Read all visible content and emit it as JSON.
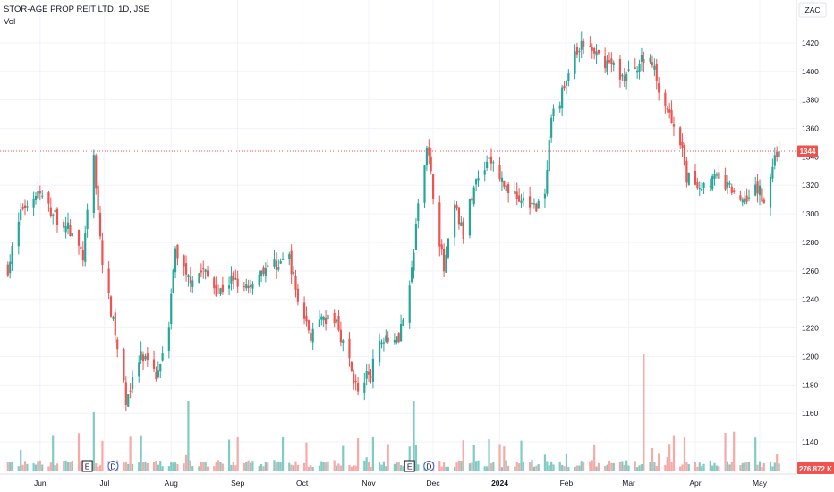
{
  "header": {
    "symbol_title": "STOR-AGE PROP REIT LTD, 1D, JSE",
    "volume_label": "Vol"
  },
  "price_axis": {
    "currency_button": "ZAC",
    "last_price_tag": "1344",
    "volume_tag": "276.872 K"
  },
  "event_markers": [
    {
      "label": "E",
      "date": "Jun 23"
    },
    {
      "label": "D",
      "date": "Jul 5"
    },
    {
      "label": "E",
      "date": "Nov 20"
    },
    {
      "label": "D",
      "date": "Nov 29"
    }
  ],
  "colors": {
    "up": "#26a69a",
    "down": "#ef5350",
    "up_volume": "#80cbc4",
    "down_volume": "#f7a9a7",
    "last_price_line": "#ef5350",
    "grid": "#f0f3fa"
  },
  "chart_data": {
    "type": "candlestick",
    "title": "STOR-AGE PROP REIT LTD, 1D, JSE",
    "currency": "ZAC",
    "ylim": [
      1130,
      1435
    ],
    "y_ticks": [
      1140,
      1160,
      1180,
      1200,
      1220,
      1240,
      1260,
      1280,
      1300,
      1320,
      1340,
      1360,
      1380,
      1400,
      1420
    ],
    "x_tick_labels": [
      "Jun",
      "Jul",
      "Aug",
      "Sep",
      "Oct",
      "Nov",
      "Dec",
      "2024",
      "Feb",
      "Mar",
      "Apr",
      "May"
    ],
    "last_price": 1344,
    "last_volume_label": "276.872 K",
    "grid": true,
    "series": [
      {
        "name": "Price",
        "close_path": [
          {
            "date": "2023-05-17",
            "close": 1262
          },
          {
            "date": "2023-05-24",
            "close": 1305
          },
          {
            "date": "2023-05-31",
            "close": 1315
          },
          {
            "date": "2023-06-07",
            "close": 1300
          },
          {
            "date": "2023-06-14",
            "close": 1290
          },
          {
            "date": "2023-06-21",
            "close": 1270
          },
          {
            "date": "2023-06-26",
            "close": 1340
          },
          {
            "date": "2023-06-30",
            "close": 1265
          },
          {
            "date": "2023-07-06",
            "close": 1215
          },
          {
            "date": "2023-07-11",
            "close": 1170
          },
          {
            "date": "2023-07-18",
            "close": 1200
          },
          {
            "date": "2023-07-25",
            "close": 1185
          },
          {
            "date": "2023-07-31",
            "close": 1225
          },
          {
            "date": "2023-08-03",
            "close": 1275
          },
          {
            "date": "2023-08-09",
            "close": 1255
          },
          {
            "date": "2023-08-16",
            "close": 1260
          },
          {
            "date": "2023-08-23",
            "close": 1245
          },
          {
            "date": "2023-08-30",
            "close": 1255
          },
          {
            "date": "2023-09-06",
            "close": 1250
          },
          {
            "date": "2023-09-13",
            "close": 1262
          },
          {
            "date": "2023-09-20",
            "close": 1265
          },
          {
            "date": "2023-09-25",
            "close": 1270
          },
          {
            "date": "2023-09-29",
            "close": 1240
          },
          {
            "date": "2023-10-05",
            "close": 1215
          },
          {
            "date": "2023-10-11",
            "close": 1225
          },
          {
            "date": "2023-10-17",
            "close": 1225
          },
          {
            "date": "2023-10-23",
            "close": 1195
          },
          {
            "date": "2023-10-27",
            "close": 1175
          },
          {
            "date": "2023-11-02",
            "close": 1190
          },
          {
            "date": "2023-11-08",
            "close": 1215
          },
          {
            "date": "2023-11-15",
            "close": 1215
          },
          {
            "date": "2023-11-20",
            "close": 1245
          },
          {
            "date": "2023-11-24",
            "close": 1305
          },
          {
            "date": "2023-11-28",
            "close": 1350
          },
          {
            "date": "2023-12-01",
            "close": 1315
          },
          {
            "date": "2023-12-06",
            "close": 1260
          },
          {
            "date": "2023-12-11",
            "close": 1305
          },
          {
            "date": "2023-12-15",
            "close": 1285
          },
          {
            "date": "2023-12-20",
            "close": 1320
          },
          {
            "date": "2023-12-27",
            "close": 1340
          },
          {
            "date": "2024-01-03",
            "close": 1320
          },
          {
            "date": "2024-01-10",
            "close": 1310
          },
          {
            "date": "2024-01-17",
            "close": 1305
          },
          {
            "date": "2024-01-22",
            "close": 1310
          },
          {
            "date": "2024-01-25",
            "close": 1365
          },
          {
            "date": "2024-01-30",
            "close": 1385
          },
          {
            "date": "2024-02-05",
            "close": 1410
          },
          {
            "date": "2024-02-09",
            "close": 1420
          },
          {
            "date": "2024-02-15",
            "close": 1410
          },
          {
            "date": "2024-02-22",
            "close": 1405
          },
          {
            "date": "2024-02-28",
            "close": 1395
          },
          {
            "date": "2024-03-05",
            "close": 1405
          },
          {
            "date": "2024-03-11",
            "close": 1410
          },
          {
            "date": "2024-03-15",
            "close": 1390
          },
          {
            "date": "2024-03-20",
            "close": 1370
          },
          {
            "date": "2024-03-25",
            "close": 1350
          },
          {
            "date": "2024-03-28",
            "close": 1325
          },
          {
            "date": "2024-04-04",
            "close": 1320
          },
          {
            "date": "2024-04-10",
            "close": 1325
          },
          {
            "date": "2024-04-17",
            "close": 1318
          },
          {
            "date": "2024-04-23",
            "close": 1310
          },
          {
            "date": "2024-04-29",
            "close": 1320
          },
          {
            "date": "2024-05-03",
            "close": 1310
          },
          {
            "date": "2024-05-08",
            "close": 1340
          },
          {
            "date": "2024-05-10",
            "close": 1344
          }
        ]
      },
      {
        "name": "Vol",
        "notable": [
          {
            "date": "2023-06-26",
            "volume_relative": 0.5
          },
          {
            "date": "2023-08-09",
            "volume_relative": 0.6
          },
          {
            "date": "2023-11-22",
            "volume_relative": 0.6
          },
          {
            "date": "2024-03-08",
            "volume_relative": 1.0
          }
        ]
      }
    ]
  }
}
